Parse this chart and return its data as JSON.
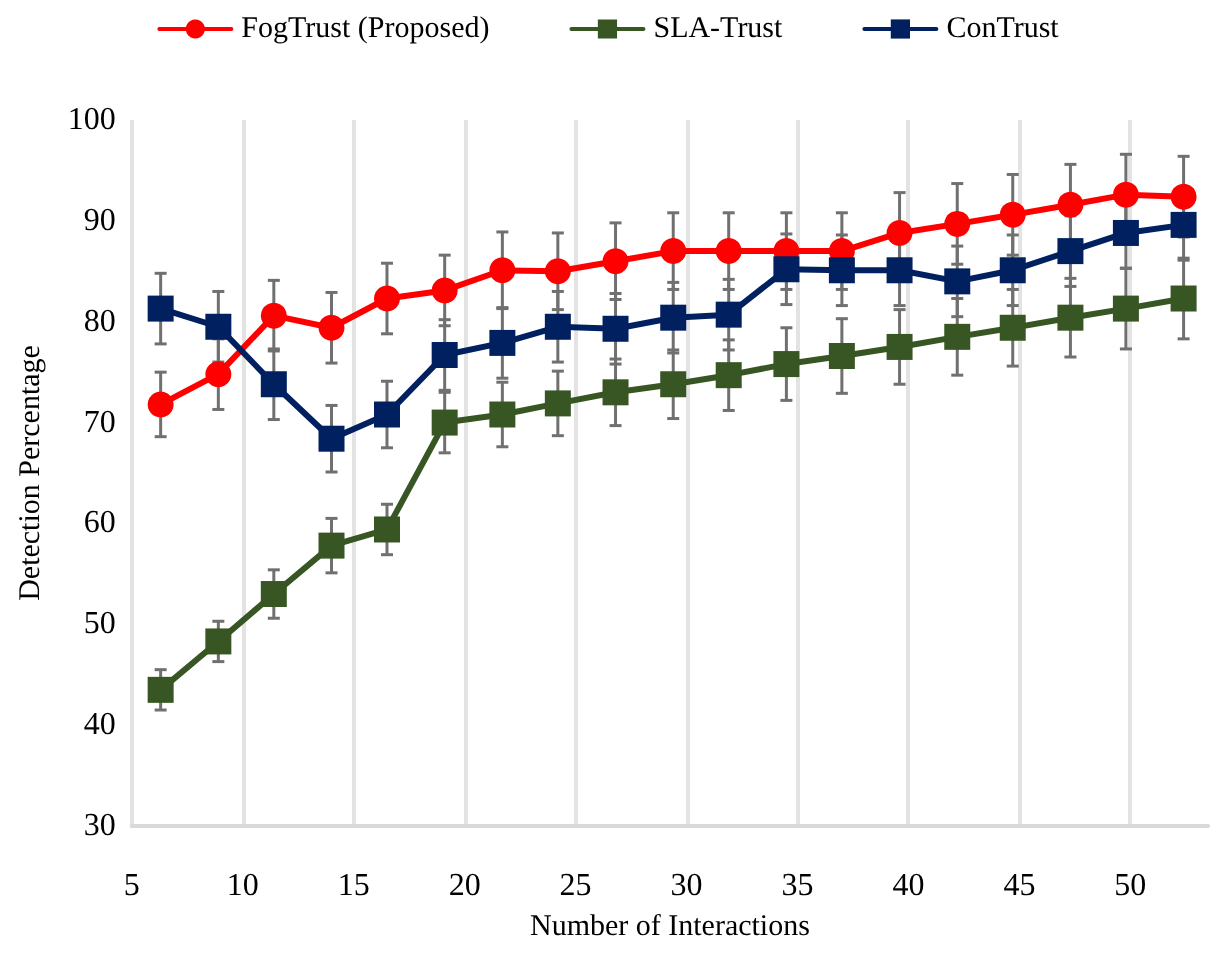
{
  "chart_data": {
    "type": "line",
    "xlabel": "Number of Interactions",
    "ylabel": "Detection Percentage",
    "x": [
      6.3,
      8.9,
      11.4,
      14.0,
      16.5,
      19.1,
      21.7,
      24.2,
      26.8,
      29.4,
      31.9,
      34.5,
      37.0,
      39.6,
      42.2,
      44.7,
      47.3,
      49.8,
      52.4
    ],
    "series": [
      {
        "name": "FogTrust (Proposed)",
        "color": "#ff0000",
        "marker": "circle",
        "values": [
          71.8,
          74.8,
          80.6,
          79.4,
          82.3,
          83.1,
          85.1,
          85.0,
          86.0,
          87.0,
          87.0,
          87.0,
          87.0,
          88.8,
          89.7,
          90.6,
          91.6,
          92.6,
          92.4
        ],
        "errors": [
          3.2,
          3.5,
          3.5,
          3.5,
          3.5,
          3.5,
          3.8,
          3.8,
          3.8,
          3.8,
          3.8,
          3.8,
          3.8,
          4,
          4,
          4,
          4,
          4,
          4
        ]
      },
      {
        "name": "SLA-Trust",
        "color": "#375623",
        "marker": "square",
        "values": [
          43.5,
          48.3,
          53.0,
          57.8,
          59.4,
          70.0,
          70.8,
          71.9,
          73.0,
          73.8,
          74.7,
          75.8,
          76.6,
          77.5,
          78.5,
          79.4,
          80.4,
          81.3,
          82.3
        ],
        "errors": [
          2,
          2,
          2.4,
          2.7,
          2.5,
          3,
          3.2,
          3.2,
          3.3,
          3.4,
          3.5,
          3.6,
          3.7,
          3.7,
          3.8,
          3.8,
          3.9,
          4,
          4
        ]
      },
      {
        "name": "ConTrust",
        "color": "#002060",
        "marker": "square",
        "values": [
          81.3,
          79.5,
          73.8,
          68.4,
          70.8,
          76.7,
          77.9,
          79.5,
          79.3,
          80.4,
          80.7,
          85.2,
          85.1,
          85.1,
          84.0,
          85.1,
          87.0,
          88.8,
          89.6
        ],
        "errors": [
          3.5,
          3.5,
          3.5,
          3.3,
          3.3,
          3.5,
          3.5,
          3.5,
          3.5,
          3.5,
          3.5,
          3.5,
          3.5,
          3.5,
          3.5,
          3.5,
          3.5,
          3.5,
          3.5
        ]
      }
    ],
    "xlim": [
      5,
      53.5
    ],
    "xticks": [
      5,
      10,
      15,
      20,
      25,
      30,
      35,
      40,
      45,
      50
    ],
    "ylim": [
      30,
      100
    ],
    "yticks": [
      30,
      40,
      50,
      60,
      70,
      80,
      90,
      100
    ],
    "grid": "x",
    "legend": "top",
    "line_style": "solid"
  }
}
